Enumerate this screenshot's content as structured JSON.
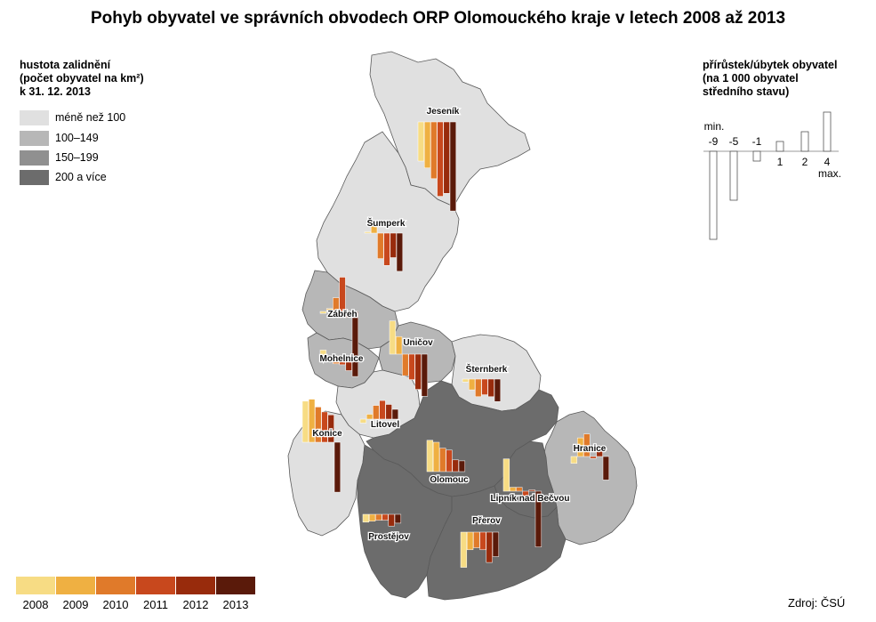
{
  "title": "Pohyb obyvatel ve správních obvodech ORP Olomouckého kraje v letech 2008 až 2013",
  "density_legend": {
    "heading": [
      "hustota zalidnění",
      "(počet obyvatel na km²)",
      "k 31. 12. 2013"
    ],
    "classes": [
      {
        "label": "méně než 100",
        "color": "#e0e0e0"
      },
      {
        "label": "100–149",
        "color": "#b7b7b7"
      },
      {
        "label": "150–199",
        "color": "#909090"
      },
      {
        "label": "200 a více",
        "color": "#6c6c6c"
      }
    ]
  },
  "change_legend": {
    "heading": [
      "přírůstek/úbytek obyvatel",
      "(na 1 000 obyvatel",
      "středního stavu)"
    ],
    "min_label": "min.",
    "max_label": "max.",
    "values": [
      -9,
      -5,
      -1,
      1,
      2,
      4
    ],
    "value_labels": [
      "-9",
      "-5",
      "-1",
      "1",
      "2",
      "4"
    ]
  },
  "years": {
    "labels": [
      "2008",
      "2009",
      "2010",
      "2011",
      "2012",
      "2013"
    ],
    "colors": [
      "#f7dc84",
      "#efb042",
      "#e07a2a",
      "#c8481d",
      "#982b0c",
      "#5a1a0a"
    ]
  },
  "map_data": {
    "districts": [
      {
        "name": "Jeseník",
        "density_class": 0,
        "values": [
          -4,
          -4.7,
          -5.8,
          -7.6,
          -7.3,
          -9.1
        ]
      },
      {
        "name": "Šumperk",
        "density_class": 0,
        "values": [
          0.1,
          1.1,
          -2.6,
          -3.3,
          -2.5,
          -3.9
        ]
      },
      {
        "name": "Zábřeh",
        "density_class": 1,
        "values": [
          -0.2,
          0.3,
          1.4,
          3.5,
          -0.6,
          -4.7
        ]
      },
      {
        "name": "Uničov",
        "density_class": 1,
        "values": [
          3.4,
          1.8,
          -2.2,
          -2.6,
          -3.6,
          -4.3
        ]
      },
      {
        "name": "Mohelnice",
        "density_class": 1,
        "values": [
          0.6,
          -0.2,
          -0.8,
          -0.9,
          -1.5,
          -2.1
        ]
      },
      {
        "name": "Šternberk",
        "density_class": 0,
        "values": [
          -0.3,
          -1.1,
          -1.8,
          -1.6,
          -1.8,
          -2.3
        ]
      },
      {
        "name": "Litovel",
        "density_class": 0,
        "values": [
          -0.4,
          0.5,
          1.4,
          1.9,
          1.5,
          1.0
        ]
      },
      {
        "name": "Konice",
        "density_class": 0,
        "values": [
          4.2,
          4.4,
          3.6,
          3.1,
          2.8,
          -5.1
        ]
      },
      {
        "name": "Olomouc",
        "density_class": 3,
        "values": [
          3.2,
          3.0,
          2.4,
          2.2,
          1.2,
          1.1
        ]
      },
      {
        "name": "Hranice",
        "density_class": 1,
        "values": [
          -0.7,
          1.9,
          2.3,
          -0.2,
          0.7,
          -2.4
        ]
      },
      {
        "name": "Lipník nad Bečvou",
        "density_class": 3,
        "values": [
          3.3,
          0.4,
          0.4,
          -0.5,
          0.1,
          -5.7
        ]
      },
      {
        "name": "Prostějov",
        "density_class": 3,
        "values": [
          -0.8,
          -0.7,
          -0.6,
          -0.6,
          -1.2,
          -0.9
        ]
      },
      {
        "name": "Přerov",
        "density_class": 3,
        "values": [
          -3.6,
          -1.8,
          -1.6,
          -1.8,
          -3.1,
          -2.5
        ]
      }
    ]
  },
  "source": "Zdroj: ČSÚ"
}
